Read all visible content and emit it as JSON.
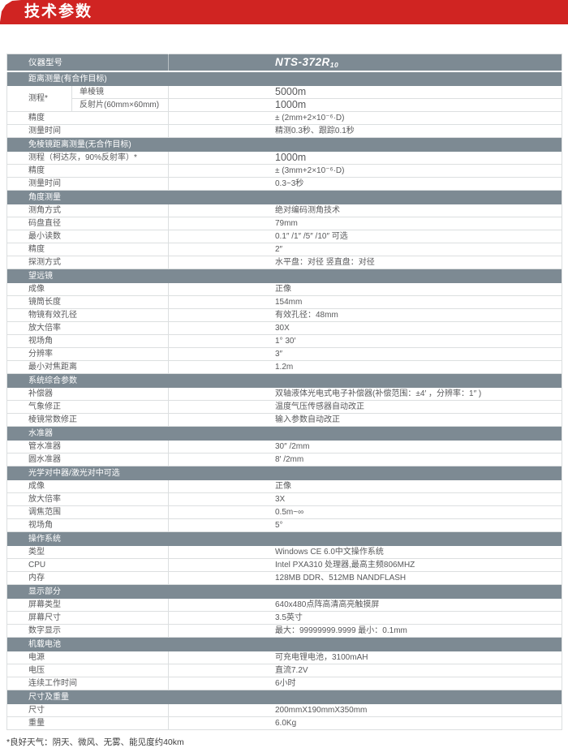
{
  "page": {
    "title": "技术参数",
    "footnote": "*良好天气：阴天、微风、无雾、能见度约40km"
  },
  "colors": {
    "banner_red": "#d02422",
    "bar_gray": "#7d8a93",
    "text_gray": "#58595b"
  },
  "table": {
    "header": {
      "label": "仪器型号",
      "model": "NTS-372R",
      "model_sub": "10"
    },
    "sections": [
      {
        "title": "距离测量(有合作目标)",
        "rows": [
          {
            "label": "测程*",
            "subrows": [
              {
                "sub": "单棱镜",
                "value": "5000m",
                "big": true
              },
              {
                "sub": "反射片(60mm×60mm)",
                "value": "1000m",
                "big": true
              }
            ]
          },
          {
            "label": "精度",
            "value": "± (2mm+2×10⁻⁶·D)"
          },
          {
            "label": "测量时间",
            "value": "精测0.3秒、跟踪0.1秒"
          }
        ]
      },
      {
        "title": "免棱镜距离测量(无合作目标)",
        "rows": [
          {
            "label": "测程（柯达灰，90%反射率）*",
            "value": "1000m",
            "big": true
          },
          {
            "label": "精度",
            "value": "± (3mm+2×10⁻⁶·D)"
          },
          {
            "label": "测量时间",
            "value": "0.3~3秒"
          }
        ]
      },
      {
        "title": "角度测量",
        "rows": [
          {
            "label": "测角方式",
            "value": "绝对编码测角技术"
          },
          {
            "label": "码盘直径",
            "value": "79mm"
          },
          {
            "label": "最小读数",
            "value": "0.1″ /1″ /5″ /10″ 可选"
          },
          {
            "label": "精度",
            "value": "2″"
          },
          {
            "label": "探测方式",
            "value": "水平盘：对径  竖直盘：对径"
          }
        ]
      },
      {
        "title": "望远镜",
        "rows": [
          {
            "label": "成像",
            "value": "正像"
          },
          {
            "label": "镜筒长度",
            "value": "154mm"
          },
          {
            "label": "物镜有效孔径",
            "value": "有效孔径：48mm"
          },
          {
            "label": "放大倍率",
            "value": "30X"
          },
          {
            "label": "视场角",
            "value": "1° 30′"
          },
          {
            "label": "分辨率",
            "value": "3″"
          },
          {
            "label": "最小对焦距离",
            "value": "1.2m"
          }
        ]
      },
      {
        "title": "系统综合参数",
        "rows": [
          {
            "label": "补偿器",
            "value": "双轴液体光电式电子补偿器(补偿范围：±4′ ，分辨率：1″ )"
          },
          {
            "label": "气象修正",
            "value": "温度气压传感器自动改正"
          },
          {
            "label": "棱镜常数修正",
            "value": "输入参数自动改正"
          }
        ]
      },
      {
        "title": "水准器",
        "rows": [
          {
            "label": "管水准器",
            "value": "30″ /2mm"
          },
          {
            "label": "圆水准器",
            "value": "8′ /2mm"
          }
        ]
      },
      {
        "title": "光学对中器/激光对中可选",
        "rows": [
          {
            "label": "成像",
            "value": "正像"
          },
          {
            "label": "放大倍率",
            "value": "3X"
          },
          {
            "label": "调焦范围",
            "value": "0.5m~∞"
          },
          {
            "label": "视场角",
            "value": "5°"
          }
        ]
      },
      {
        "title": "操作系统",
        "rows": [
          {
            "label": "类型",
            "value": "Windows CE 6.0中文操作系统"
          },
          {
            "label": "CPU",
            "value": "Intel PXA310 处理器,最高主频806MHZ"
          },
          {
            "label": "内存",
            "value": "128MB DDR、512MB NANDFLASH"
          }
        ]
      },
      {
        "title": "显示部分",
        "rows": [
          {
            "label": "屏幕类型",
            "value": "640x480点阵高清高亮触摸屏"
          },
          {
            "label": "屏幕尺寸",
            "value": "3.5英寸"
          },
          {
            "label": "数字显示",
            "value": "最大：99999999.9999  最小：0.1mm"
          }
        ]
      },
      {
        "title": "机载电池",
        "rows": [
          {
            "label": "电源",
            "value": "可充电锂电池，3100mAH"
          },
          {
            "label": "电压",
            "value": "直流7.2V"
          },
          {
            "label": "连续工作时间",
            "value": "6小时"
          }
        ]
      },
      {
        "title": "尺寸及重量",
        "rows": [
          {
            "label": "尺寸",
            "value": "200mmX190mmX350mm"
          },
          {
            "label": "重量",
            "value": "6.0Kg"
          }
        ]
      }
    ]
  }
}
